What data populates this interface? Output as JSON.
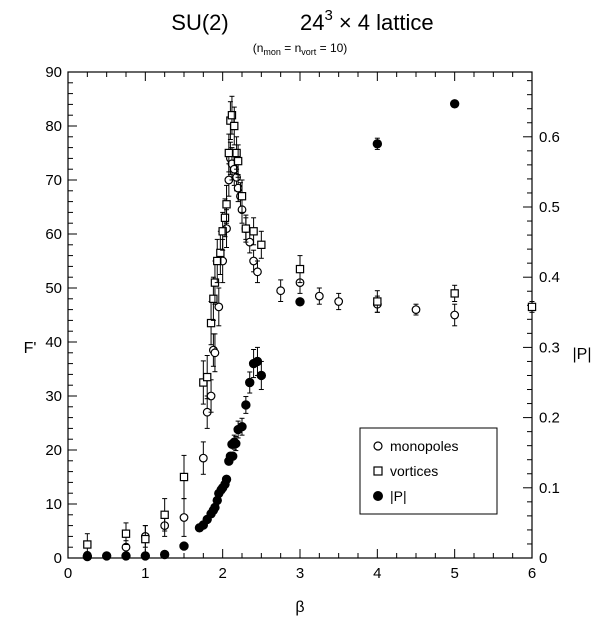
{
  "chart_data": {
    "type": "scatter",
    "title": {
      "main": "SU(2)",
      "lattice_base": "24",
      "lattice_exp": "3",
      "lattice_rest": "× 4  lattice"
    },
    "subtitle": {
      "open": "(n",
      "sub1": "mon",
      "mid": " = n",
      "sub2": "vort",
      "close": " = 10)"
    },
    "xlabel": "β",
    "ylabel_left": "F'",
    "ylabel_right": "|P|",
    "xlim": [
      0,
      6
    ],
    "ylim_left": [
      0,
      90
    ],
    "ylim_right": [
      0,
      0.6923
    ],
    "xticks": [
      0,
      1,
      2,
      3,
      4,
      5,
      6
    ],
    "yticks_left": [
      0,
      10,
      20,
      30,
      40,
      50,
      60,
      70,
      80,
      90
    ],
    "yticks_right": [
      0,
      0.1,
      0.2,
      0.3,
      0.4,
      0.5,
      0.6
    ],
    "xtick_labels": [
      "0",
      "1",
      "2",
      "3",
      "4",
      "5",
      "6"
    ],
    "ytick_labels_left": [
      "0",
      "10",
      "20",
      "30",
      "40",
      "50",
      "60",
      "70",
      "80",
      "90"
    ],
    "ytick_labels_right": [
      "0",
      "0.1",
      "0.2",
      "0.3",
      "0.4",
      "0.5",
      "0.6"
    ],
    "grid": false,
    "legend_position": "bottom-right",
    "series": [
      {
        "name": "monopoles",
        "marker": "open-circle",
        "axis": "left",
        "points": [
          [
            0.25,
            0.5,
            0.5
          ],
          [
            0.75,
            2.0,
            1.2
          ],
          [
            1.0,
            4.0,
            2.0
          ],
          [
            1.25,
            6.0,
            2.0
          ],
          [
            1.5,
            7.5,
            3.5
          ],
          [
            1.75,
            18.5,
            3.0
          ],
          [
            1.8,
            27.0,
            3.0
          ],
          [
            1.85,
            30.0,
            3.0
          ],
          [
            1.88,
            38.5,
            3.0
          ],
          [
            1.9,
            38.0,
            3.5
          ],
          [
            1.95,
            46.5,
            3.5
          ],
          [
            2.0,
            55.0,
            4.0
          ],
          [
            2.05,
            61.0,
            3.5
          ],
          [
            2.08,
            70.0,
            3.0
          ],
          [
            2.1,
            74.0,
            3.0
          ],
          [
            2.12,
            73.0,
            3.0
          ],
          [
            2.15,
            72.0,
            3.0
          ],
          [
            2.18,
            70.5,
            2.5
          ],
          [
            2.2,
            68.5,
            2.5
          ],
          [
            2.23,
            67.0,
            2.5
          ],
          [
            2.25,
            64.5,
            2.5
          ],
          [
            2.3,
            61.0,
            2.0
          ],
          [
            2.35,
            58.5,
            2.0
          ],
          [
            2.4,
            55.0,
            2.0
          ],
          [
            2.45,
            53.0,
            2.0
          ],
          [
            2.75,
            49.5,
            2.0
          ],
          [
            3.0,
            51.0,
            2.0
          ],
          [
            3.25,
            48.5,
            1.5
          ],
          [
            3.5,
            47.5,
            1.5
          ],
          [
            4.0,
            47.0,
            1.5
          ],
          [
            4.5,
            46.0,
            1.0
          ],
          [
            5.0,
            45.0,
            2.0
          ]
        ]
      },
      {
        "name": "vortices",
        "marker": "open-square",
        "axis": "left",
        "points": [
          [
            0.25,
            2.5,
            2.0
          ],
          [
            0.75,
            4.5,
            2.0
          ],
          [
            1.0,
            3.5,
            2.5
          ],
          [
            1.25,
            8.0,
            3.0
          ],
          [
            1.5,
            15.0,
            4.0
          ],
          [
            1.75,
            32.5,
            4.0
          ],
          [
            1.8,
            33.5,
            4.0
          ],
          [
            1.85,
            43.5,
            4.0
          ],
          [
            1.88,
            48.0,
            4.0
          ],
          [
            1.9,
            51.0,
            4.0
          ],
          [
            1.93,
            55.0,
            4.0
          ],
          [
            1.97,
            56.5,
            4.0
          ],
          [
            2.0,
            60.5,
            3.5
          ],
          [
            2.03,
            63.0,
            3.5
          ],
          [
            2.05,
            65.5,
            3.5
          ],
          [
            2.08,
            75.0,
            3.5
          ],
          [
            2.1,
            81.0,
            3.5
          ],
          [
            2.12,
            82.0,
            3.5
          ],
          [
            2.15,
            80.0,
            3.5
          ],
          [
            2.18,
            75.0,
            3.0
          ],
          [
            2.2,
            73.5,
            3.0
          ],
          [
            2.25,
            67.0,
            3.0
          ],
          [
            2.3,
            61.0,
            2.5
          ],
          [
            2.4,
            60.5,
            2.5
          ],
          [
            2.5,
            58.0,
            2.5
          ],
          [
            3.0,
            53.5,
            2.5
          ],
          [
            4.0,
            47.5,
            2.0
          ],
          [
            5.0,
            49.0,
            1.5
          ],
          [
            6.0,
            46.5,
            1.0
          ]
        ]
      },
      {
        "name": "|P|",
        "marker": "filled-circle",
        "axis": "right",
        "points": [
          [
            0.25,
            0.002,
            0.0
          ],
          [
            0.5,
            0.003,
            0.0
          ],
          [
            0.75,
            0.003,
            0.0
          ],
          [
            1.0,
            0.003,
            0.0
          ],
          [
            1.25,
            0.005,
            0.0
          ],
          [
            1.5,
            0.017,
            0.0
          ],
          [
            1.7,
            0.043,
            0.0
          ],
          [
            1.75,
            0.047,
            0.0
          ],
          [
            1.8,
            0.055,
            0.0
          ],
          [
            1.85,
            0.063,
            0.0
          ],
          [
            1.88,
            0.068,
            0.0
          ],
          [
            1.9,
            0.072,
            0.0
          ],
          [
            1.93,
            0.082,
            0.0
          ],
          [
            1.95,
            0.092,
            0.0
          ],
          [
            1.98,
            0.097,
            0.0
          ],
          [
            2.0,
            0.1,
            0.0
          ],
          [
            2.03,
            0.105,
            0.0
          ],
          [
            2.05,
            0.112,
            0.0
          ],
          [
            2.08,
            0.138,
            0.0
          ],
          [
            2.1,
            0.145,
            0.0
          ],
          [
            2.12,
            0.162,
            0.0
          ],
          [
            2.13,
            0.145,
            0.0
          ],
          [
            2.15,
            0.165,
            0.01
          ],
          [
            2.17,
            0.163,
            0.01
          ],
          [
            2.2,
            0.183,
            0.012
          ],
          [
            2.25,
            0.187,
            0.012
          ],
          [
            2.3,
            0.218,
            0.012
          ],
          [
            2.35,
            0.25,
            0.015
          ],
          [
            2.4,
            0.277,
            0.02
          ],
          [
            2.45,
            0.28,
            0.02
          ],
          [
            2.5,
            0.26,
            0.02
          ],
          [
            3.0,
            0.365,
            0.0
          ],
          [
            4.0,
            0.59,
            0.008
          ],
          [
            5.0,
            0.647,
            0.0
          ]
        ]
      }
    ]
  }
}
